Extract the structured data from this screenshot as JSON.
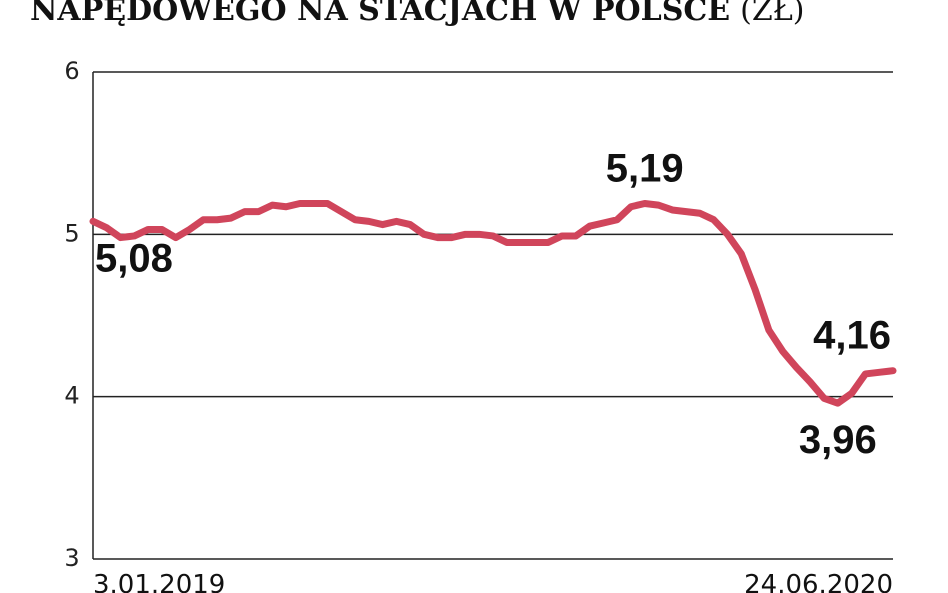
{
  "chart_data": {
    "type": "line",
    "title": "NAPĘDOWEGO NA STACJACH W POLSCE",
    "unit": "(ZŁ)",
    "categories": [
      "3.01.2019",
      null,
      null,
      null,
      null,
      null,
      null,
      null,
      null,
      null,
      null,
      null,
      null,
      null,
      null,
      null,
      null,
      null,
      null,
      null,
      null,
      null,
      null,
      null,
      null,
      null,
      null,
      null,
      null,
      null,
      null,
      null,
      null,
      null,
      null,
      null,
      null,
      null,
      null,
      null,
      null,
      null,
      null,
      null,
      null,
      null,
      null,
      null,
      null,
      null,
      null,
      null,
      null,
      null,
      null,
      null,
      null,
      null,
      "24.06.2020"
    ],
    "series": [
      {
        "color": "#d0455b",
        "values": [
          5.08,
          5.04,
          4.98,
          4.99,
          5.03,
          5.03,
          4.98,
          5.03,
          5.09,
          5.09,
          5.1,
          5.14,
          5.14,
          5.18,
          5.17,
          5.19,
          5.19,
          5.19,
          5.14,
          5.09,
          5.08,
          5.06,
          5.08,
          5.06,
          5.0,
          4.98,
          4.98,
          5.0,
          5.0,
          4.99,
          4.95,
          4.95,
          4.95,
          4.95,
          4.99,
          4.99,
          5.05,
          5.07,
          5.09,
          5.17,
          5.19,
          5.18,
          5.15,
          5.14,
          5.13,
          5.09,
          5.0,
          4.88,
          4.66,
          4.41,
          4.28,
          4.18,
          4.09,
          3.99,
          3.96,
          4.02,
          4.14,
          4.15,
          4.16
        ],
        "value_labels": [
          "5,08",
          null,
          null,
          null,
          null,
          null,
          null,
          null,
          null,
          null,
          null,
          null,
          null,
          null,
          null,
          null,
          null,
          null,
          null,
          null,
          null,
          null,
          null,
          null,
          null,
          null,
          null,
          null,
          null,
          null,
          null,
          null,
          null,
          null,
          null,
          null,
          null,
          null,
          null,
          null,
          "5,19",
          null,
          null,
          null,
          null,
          null,
          null,
          null,
          null,
          null,
          null,
          null,
          null,
          null,
          "3,96",
          null,
          null,
          null,
          "4,16"
        ]
      }
    ],
    "ylim": [
      3,
      6
    ],
    "yticks": [
      3,
      4,
      5,
      6
    ],
    "grid": true
  }
}
